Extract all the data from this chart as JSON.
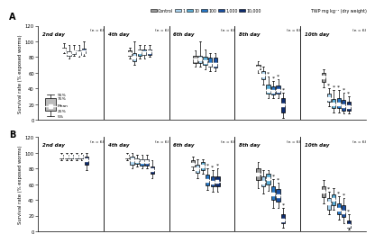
{
  "colors": {
    "control": "#999999",
    "c1": "#aad4f0",
    "c10": "#5bacd4",
    "c100": "#2575c4",
    "c1000": "#1a4fa0",
    "c10000": "#0d2b6e"
  },
  "legend_labels": [
    "Control",
    "1",
    "10",
    "100",
    "1,000",
    "10,000"
  ],
  "twp_label": "TWP mg kg⁻¹ (dry weight)",
  "days": [
    "2nd day",
    "4th day",
    "6th day",
    "8th day",
    "10th day"
  ],
  "n_label": "(n = 6)",
  "panel_A": {
    "boxes_per_day": [
      5,
      5,
      5,
      6,
      6
    ],
    "data": {
      "day2": {
        "control": [
          85,
          88,
          90,
          92,
          98
        ],
        "c1": [
          78,
          82,
          84,
          87,
          95
        ],
        "c10": [
          82,
          84,
          87,
          89,
          95
        ],
        "c100": [
          80,
          83,
          87,
          89,
          95
        ],
        "c1000": [
          82,
          85,
          88,
          91,
          100
        ],
        "c10000": null
      },
      "day4": {
        "control": [
          78,
          82,
          85,
          88,
          92
        ],
        "c1": [
          70,
          75,
          80,
          85,
          100
        ],
        "c10": [
          78,
          82,
          87,
          90,
          95
        ],
        "c100": [
          78,
          83,
          87,
          90,
          95
        ],
        "c1000": [
          80,
          83,
          87,
          90,
          95
        ],
        "c10000": null
      },
      "day6": {
        "control": [
          68,
          73,
          78,
          82,
          88
        ],
        "c1": [
          68,
          73,
          78,
          82,
          100
        ],
        "c10": [
          65,
          70,
          76,
          80,
          90
        ],
        "c100": [
          62,
          68,
          73,
          79,
          85
        ],
        "c1000": [
          62,
          67,
          73,
          79,
          85
        ],
        "c10000": null
      },
      "day8": {
        "control": [
          60,
          64,
          67,
          70,
          75
        ],
        "c1": [
          45,
          52,
          57,
          62,
          68
        ],
        "c10": [
          28,
          33,
          38,
          45,
          55
        ],
        "c100": [
          28,
          32,
          37,
          43,
          50
        ],
        "c1000": [
          28,
          33,
          38,
          44,
          52
        ],
        "c10000": [
          2,
          10,
          20,
          28,
          35
        ]
      },
      "day10": {
        "control": [
          42,
          48,
          55,
          60,
          65
        ],
        "c1": [
          18,
          23,
          28,
          33,
          40
        ],
        "c10": [
          10,
          15,
          20,
          27,
          38
        ],
        "c100": [
          10,
          15,
          20,
          28,
          38
        ],
        "c1000": [
          8,
          12,
          18,
          25,
          35
        ],
        "c10000": [
          8,
          12,
          17,
          23,
          30
        ]
      }
    },
    "means": {
      "day2": {
        "control": 89,
        "c1": 84,
        "c10": 86,
        "c100": 84,
        "c1000": 86,
        "c10000": null
      },
      "day4": {
        "control": 84,
        "c1": 79,
        "c10": 86,
        "c100": 85,
        "c1000": 86,
        "c10000": null
      },
      "day6": {
        "control": 76,
        "c1": 77,
        "c10": 74,
        "c100": 70,
        "c1000": 70,
        "c10000": null
      },
      "day8": {
        "control": 66,
        "c1": 56,
        "c10": 37,
        "c100": 36,
        "c1000": 37,
        "c10000": 19
      },
      "day10": {
        "control": 54,
        "c1": 27,
        "c10": 20,
        "c100": 20,
        "c1000": 17,
        "c10000": 16
      }
    },
    "sig": {
      "day2": {
        "control": false,
        "c1": false,
        "c10": false,
        "c100": false,
        "c1000": false,
        "c10000": false
      },
      "day4": {
        "control": false,
        "c1": false,
        "c10": false,
        "c100": false,
        "c1000": false,
        "c10000": false
      },
      "day6": {
        "control": false,
        "c1": false,
        "c10": false,
        "c100": false,
        "c1000": false,
        "c10000": false
      },
      "day8": {
        "control": false,
        "c1": false,
        "c10": true,
        "c100": true,
        "c1000": true,
        "c10000": true
      },
      "day10": {
        "control": false,
        "c1": true,
        "c10": true,
        "c100": true,
        "c1000": true,
        "c10000": true
      }
    }
  },
  "panel_B": {
    "boxes_per_day": [
      6,
      6,
      6,
      6,
      6
    ],
    "data": {
      "day2": {
        "control": [
          90,
          93,
          95,
          97,
          100
        ],
        "c1": [
          90,
          93,
          95,
          97,
          100
        ],
        "c10": [
          90,
          93,
          95,
          97,
          100
        ],
        "c100": [
          90,
          93,
          95,
          97,
          100
        ],
        "c1000": [
          90,
          93,
          95,
          97,
          100
        ],
        "c10000": [
          78,
          85,
          90,
          95,
          100
        ]
      },
      "day4": {
        "control": [
          90,
          93,
          95,
          97,
          100
        ],
        "c1": [
          80,
          85,
          90,
          95,
          100
        ],
        "c10": [
          82,
          86,
          90,
          93,
          97
        ],
        "c100": [
          80,
          84,
          88,
          92,
          97
        ],
        "c1000": [
          80,
          84,
          88,
          92,
          97
        ],
        "c10000": [
          68,
          73,
          78,
          83,
          90
        ]
      },
      "day6": {
        "control": [
          78,
          82,
          86,
          90,
          95
        ],
        "c1": [
          68,
          74,
          80,
          85,
          92
        ],
        "c10": [
          73,
          78,
          83,
          88,
          92
        ],
        "c100": [
          53,
          59,
          65,
          72,
          80
        ],
        "c1000": [
          50,
          57,
          63,
          70,
          78
        ],
        "c10000": [
          50,
          57,
          63,
          70,
          80
        ]
      },
      "day8": {
        "control": [
          55,
          65,
          73,
          80,
          88
        ],
        "c1": [
          48,
          57,
          63,
          70,
          78
        ],
        "c10": [
          52,
          60,
          67,
          73,
          78
        ],
        "c100": [
          30,
          40,
          48,
          57,
          67
        ],
        "c1000": [
          30,
          38,
          46,
          54,
          62
        ],
        "c10000": [
          5,
          10,
          15,
          22,
          30
        ]
      },
      "day10": {
        "control": [
          35,
          43,
          50,
          57,
          65
        ],
        "c1": [
          22,
          28,
          35,
          42,
          50
        ],
        "c10": [
          28,
          33,
          40,
          47,
          55
        ],
        "c100": [
          15,
          22,
          28,
          36,
          45
        ],
        "c1000": [
          10,
          18,
          25,
          33,
          42
        ],
        "c10000": [
          2,
          5,
          8,
          14,
          22
        ]
      }
    },
    "means": {
      "day2": {
        "control": 95,
        "c1": 95,
        "c10": 95,
        "c100": 95,
        "c1000": 95,
        "c10000": 90
      },
      "day4": {
        "control": 95,
        "c1": 90,
        "c10": 89,
        "c100": 88,
        "c1000": 88,
        "c10000": 78
      },
      "day6": {
        "control": 85,
        "c1": 79,
        "c10": 83,
        "c100": 64,
        "c1000": 62,
        "c10000": 63
      },
      "day8": {
        "control": 72,
        "c1": 62,
        "c10": 66,
        "c100": 47,
        "c1000": 45,
        "c10000": 14
      },
      "day10": {
        "control": 50,
        "c1": 35,
        "c10": 40,
        "c100": 27,
        "c1000": 24,
        "c10000": 7
      }
    },
    "sig": {
      "day2": {
        "control": false,
        "c1": false,
        "c10": false,
        "c100": false,
        "c1000": false,
        "c10000": false
      },
      "day4": {
        "control": false,
        "c1": false,
        "c10": false,
        "c100": false,
        "c1000": false,
        "c10000": false
      },
      "day6": {
        "control": false,
        "c1": false,
        "c10": false,
        "c100": true,
        "c1000": true,
        "c10000": true
      },
      "day8": {
        "control": false,
        "c1": false,
        "c10": false,
        "c100": true,
        "c1000": true,
        "c10000": true
      },
      "day10": {
        "control": false,
        "c1": true,
        "c10": false,
        "c100": true,
        "c1000": true,
        "c10000": true
      }
    }
  },
  "ylim": [
    0,
    120
  ],
  "yticks": [
    0,
    20,
    40,
    60,
    80,
    100,
    120
  ],
  "background": "#ffffff",
  "linewidth": 0.5
}
